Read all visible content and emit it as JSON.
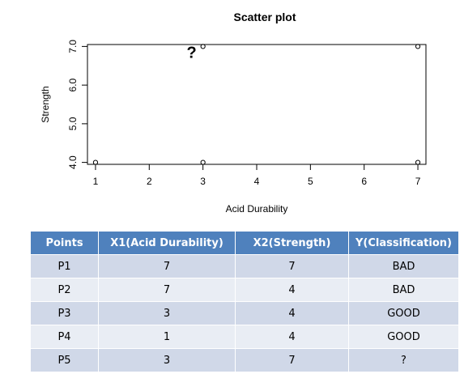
{
  "chart_data": {
    "type": "scatter",
    "title": "Scatter plot",
    "xlabel": "Acid Durability",
    "ylabel": "Strength",
    "xlim": [
      0.85,
      7.15
    ],
    "ylim": [
      3.95,
      7.05
    ],
    "x_ticks": [
      "1",
      "2",
      "3",
      "4",
      "5",
      "6",
      "7"
    ],
    "y_ticks": [
      "4.0",
      "5.0",
      "6.0",
      "7.0"
    ],
    "grid": false,
    "points": [
      {
        "x": 7,
        "y": 7
      },
      {
        "x": 7,
        "y": 4
      },
      {
        "x": 3,
        "y": 4
      },
      {
        "x": 1,
        "y": 4
      },
      {
        "x": 3,
        "y": 7
      }
    ],
    "annotations": [
      {
        "text": "?",
        "x": 3,
        "y": 7
      }
    ]
  },
  "table": {
    "columns": [
      "Points",
      "X1(Acid Durability)",
      "X2(Strength)",
      "Y(Classification)"
    ],
    "rows": [
      [
        "P1",
        "7",
        "7",
        "BAD"
      ],
      [
        "P2",
        "7",
        "4",
        "BAD"
      ],
      [
        "P3",
        "3",
        "4",
        "GOOD"
      ],
      [
        "P4",
        "1",
        "4",
        "GOOD"
      ],
      [
        "P5",
        "3",
        "7",
        "?"
      ]
    ]
  }
}
